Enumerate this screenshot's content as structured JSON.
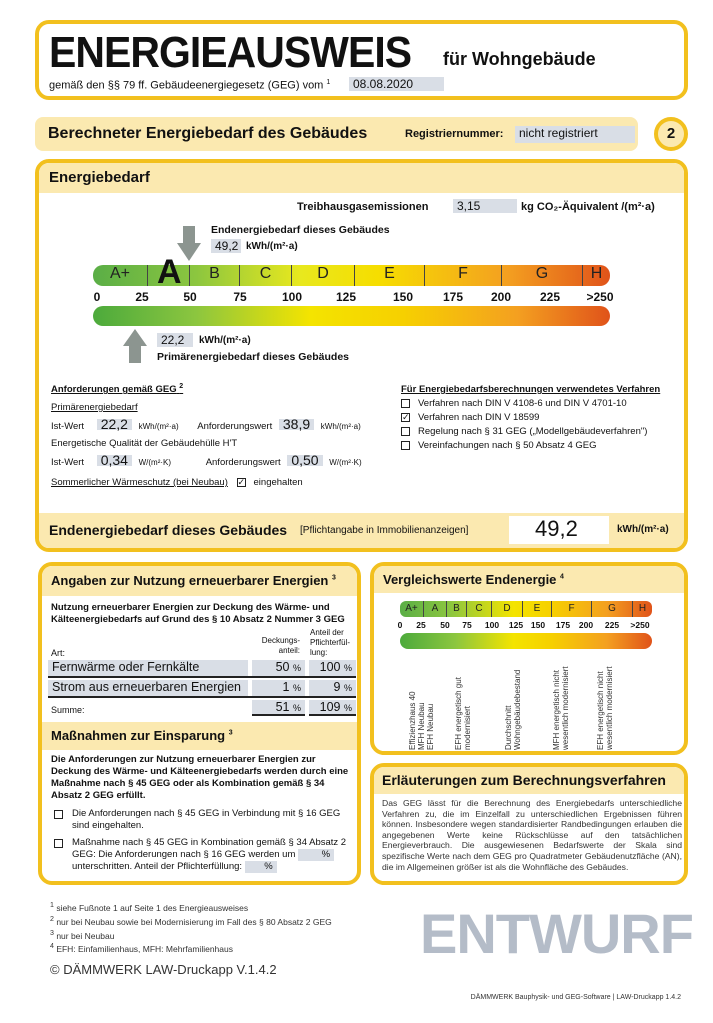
{
  "header": {
    "title": "ENERGIEAUSWEIS",
    "subtitle": "für Wohngebäude",
    "legal": "gemäß den §§ 79 ff. Gebäudeenergiegesetz (GEG) vom",
    "legal_fn": "1",
    "date": "08.08.2020"
  },
  "section": {
    "title": "Berechneter Energiebedarf des Gebäudes",
    "reg_label": "Registriernummer:",
    "reg_value": "nicht registriert",
    "page": "2"
  },
  "energy": {
    "title": "Energiebedarf",
    "ghg_label": "Treibhausgasemissionen",
    "ghg_value": "3,15",
    "ghg_unit": "kg CO₂-Äquivalent /(m²·a)",
    "end_label": "Endenergiebedarf dieses Gebäudes",
    "end_value": "49,2",
    "end_unit": "kWh/(m²·a)",
    "prim_label": "Primärenergiebedarf dieses Gebäudes",
    "prim_value": "22,2",
    "prim_unit": "kWh/(m²·a)",
    "current_class": "A",
    "classes": [
      "A+",
      "A",
      "B",
      "C",
      "D",
      "E",
      "F",
      "G",
      "H"
    ],
    "ticks": [
      "0",
      "25",
      "50",
      "75",
      "100",
      "125",
      "150",
      "175",
      "200",
      "225",
      ">250"
    ],
    "colors": {
      "green": "#4caa3c",
      "yellow": "#f4e400",
      "orange": "#f08a1c",
      "red": "#e0531a",
      "border": "#f2c01e"
    }
  },
  "requirements": {
    "title": "Anforderungen gemäß GEG",
    "title_fn": "2",
    "prim_title": "Primärenergiebedarf",
    "ist_label": "Ist-Wert",
    "prim_ist": "22,2",
    "prim_unit": "kWh/(m²·a)",
    "anf_label": "Anforderungswert",
    "prim_anf": "38,9",
    "prim_anf_unit": "kWh/(m²·a)",
    "ht_title": "Energetische Qualität der Gebäudehülle H'T",
    "ht_ist": "0,34",
    "ht_unit": "W/(m²·K)",
    "ht_anf": "0,50",
    "ht_anf_unit": "W/(m²·K)",
    "summer_label": "Sommerlicher Wärmeschutz (bei Neubau)",
    "summer_value": "eingehalten"
  },
  "method": {
    "title": "Für Energiebedarfsberechnungen verwendetes Verfahren",
    "options": [
      {
        "label": "Verfahren nach DIN V 4108-6 und DIN V 4701-10",
        "checked": false
      },
      {
        "label": "Verfahren nach DIN V 18599",
        "checked": true
      },
      {
        "label": "Regelung nach § 31 GEG („Modellgebäudeverfahren\")",
        "checked": false
      },
      {
        "label": "Vereinfachungen nach § 50 Absatz 4 GEG",
        "checked": false
      }
    ]
  },
  "final": {
    "label": "Endenergiebedarf dieses Gebäudes",
    "note": "[Pflichtangabe in Immobilienanzeigen]",
    "value": "49,2",
    "unit": "kWh/(m²·a)"
  },
  "renewables": {
    "title": "Angaben zur Nutzung erneuerbarer Energien",
    "title_fn": "3",
    "intro": "Nutzung erneuerbarer Energien zur Deckung des Wärme- und Kälteenergiebedarfs auf Grund des § 10 Absatz 2 Nummer 3 GEG",
    "col_art": "Art:",
    "col_share": "Deckungs-anteil:",
    "col_duty": "Anteil der Pflichterfül-lung:",
    "rows": [
      {
        "name": "Fernwärme oder Fernkälte",
        "share": "50",
        "duty": "100"
      },
      {
        "name": "Strom aus erneuerbaren Energien",
        "share": "1",
        "duty": "9"
      }
    ],
    "sum_label": "Summe:",
    "sum_share": "51",
    "sum_duty": "109",
    "pct": "%"
  },
  "measures": {
    "title": "Maßnahmen zur Einsparung",
    "title_fn": "3",
    "intro": "Die Anforderungen zur Nutzung erneuerbarer Energien zur Deckung des Wärme- und Kälteenergiebedarfs werden durch eine Maßnahme nach § 45 GEG oder als Kombination gemäß § 34 Absatz 2 GEG erfüllt.",
    "opt1": "Die Anforderungen nach § 45 GEG in Verbindung mit § 16 GEG sind eingehalten.",
    "opt2a": "Maßnahme nach § 45 GEG in Kombination gemäß § 34 Absatz 2 GEG: Die Anforderungen nach § 16 GEG werden um",
    "opt2b": "unterschritten. Anteil der Pflichterfüllung:",
    "pct": "%"
  },
  "comparison": {
    "title": "Vergleichswerte Endenergie",
    "title_fn": "4",
    "classes": [
      "A+",
      "A",
      "B",
      "C",
      "D",
      "E",
      "F",
      "G",
      "H"
    ],
    "ticks": [
      "0",
      "25",
      "50",
      "75",
      "100",
      "125",
      "150",
      "175",
      "200",
      "225",
      ">250"
    ],
    "refs": [
      "Effizienzhaus 40",
      "MFH Neubau",
      "EFH Neubau",
      "EFH energetisch gut modernisiert",
      "Durchschnitt Wohngebäudebestand",
      "MFH energetisch nicht wesentlich modernisiert",
      "EFH energetisch nicht wesentlich modernisiert"
    ]
  },
  "explanation": {
    "title": "Erläuterungen zum Berechnungsverfahren",
    "text": "Das GEG lässt für die Berechnung des Energiebedarfs unterschiedliche Verfahren zu, die im Einzelfall zu unterschiedlichen Ergebnissen führen können. Insbesondere wegen standardisierter Randbedingungen erlauben die angegebenen Werte keine Rückschlüsse auf den tatsächlichen Energieverbrauch. Die ausgewiesenen Bedarfswerte der Skala sind spezifische Werte nach dem GEG pro Quadratmeter Gebäudenutzfläche (AN), die im Allgemeinen größer ist als die Wohnfläche des Gebäudes."
  },
  "footnotes": [
    {
      "n": "1",
      "text": "siehe Fußnote 1 auf Seite 1 des Energieausweises"
    },
    {
      "n": "2",
      "text": "nur bei Neubau sowie bei Modernisierung im Fall des § 80 Absatz 2 GEG"
    },
    {
      "n": "3",
      "text": "nur bei Neubau"
    },
    {
      "n": "4",
      "text": "EFH: Einfamilienhaus, MFH: Mehrfamilienhaus"
    }
  ],
  "footer": "DÄMMWERK Bauphysik- und GEG-Software | LAW-Druckapp 1.4.2",
  "watermark": {
    "main": "ENTWURF",
    "small": "© DÄMMWERK LAW-Druckapp V.1.4.2"
  }
}
